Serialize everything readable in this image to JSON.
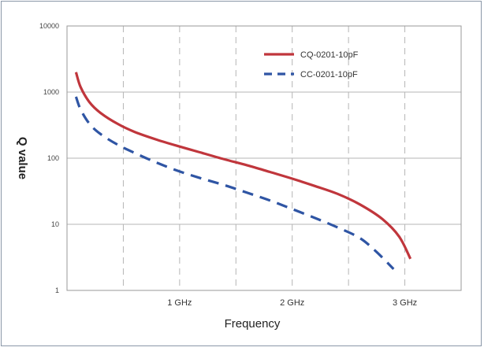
{
  "chart_data": {
    "type": "line",
    "title": "",
    "xlabel": "Frequency",
    "ylabel": "Q value",
    "yscale": "log",
    "ylim": [
      1,
      10000
    ],
    "xlim": [
      0.0,
      3.5
    ],
    "grid": {
      "horizontal": "solid",
      "vertical": "dashed"
    },
    "legend_position": "top-right",
    "x_ticks": [
      {
        "value": 1,
        "label": "1 GHz"
      },
      {
        "value": 2,
        "label": "2 GHz"
      },
      {
        "value": 3,
        "label": "3 GHz"
      }
    ],
    "y_ticks": [
      {
        "value": 1,
        "label": "1"
      },
      {
        "value": 10,
        "label": "10"
      },
      {
        "value": 100,
        "label": "100"
      },
      {
        "value": 1000,
        "label": "1000"
      },
      {
        "value": 10000,
        "label": "10000"
      }
    ],
    "series": [
      {
        "name": "CQ-0201-10pF",
        "color": "#c0363c",
        "style": "solid",
        "points": [
          [
            0.08,
            2000
          ],
          [
            0.12,
            1200
          ],
          [
            0.2,
            700
          ],
          [
            0.3,
            480
          ],
          [
            0.45,
            330
          ],
          [
            0.6,
            250
          ],
          [
            0.8,
            190
          ],
          [
            1.0,
            150
          ],
          [
            1.2,
            120
          ],
          [
            1.4,
            96
          ],
          [
            1.6,
            78
          ],
          [
            1.8,
            62
          ],
          [
            2.0,
            49
          ],
          [
            2.2,
            38
          ],
          [
            2.4,
            29
          ],
          [
            2.6,
            20
          ],
          [
            2.8,
            12
          ],
          [
            2.95,
            6.5
          ],
          [
            3.05,
            3
          ]
        ]
      },
      {
        "name": "CC-0201-10pF",
        "color": "#2f55a4",
        "style": "dashed",
        "points": [
          [
            0.08,
            850
          ],
          [
            0.12,
            550
          ],
          [
            0.2,
            330
          ],
          [
            0.3,
            230
          ],
          [
            0.45,
            160
          ],
          [
            0.6,
            120
          ],
          [
            0.8,
            85
          ],
          [
            1.0,
            63
          ],
          [
            1.2,
            49
          ],
          [
            1.4,
            39
          ],
          [
            1.6,
            30
          ],
          [
            1.8,
            23
          ],
          [
            2.0,
            17
          ],
          [
            2.2,
            12.5
          ],
          [
            2.4,
            9
          ],
          [
            2.6,
            6.2
          ],
          [
            2.75,
            3.8
          ],
          [
            2.9,
            2.1
          ]
        ]
      }
    ]
  }
}
